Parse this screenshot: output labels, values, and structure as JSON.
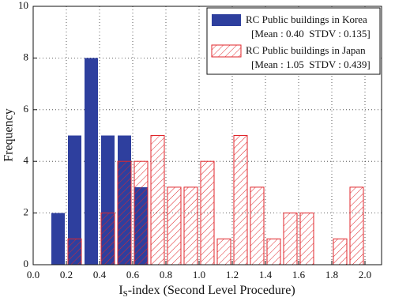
{
  "chart_data": {
    "type": "histogram",
    "xlabel_parts": [
      "I",
      "S",
      "-index (Second Level Procedure)"
    ],
    "ylabel": "Frequency",
    "bins": [
      0.1,
      0.2,
      0.3,
      0.4,
      0.5,
      0.6,
      0.7,
      0.8,
      0.9,
      1.0,
      1.1,
      1.2,
      1.3,
      1.4,
      1.5,
      1.6,
      1.7,
      1.8,
      1.9,
      2.0
    ],
    "series": [
      {
        "name": "RC Public buildings in Korea",
        "stats": "[Mean : 0.40  STDV : 0.135]",
        "color": "#2e3f9e",
        "fill": "solid",
        "values": [
          2,
          5,
          8,
          5,
          5,
          3,
          0,
          0,
          0,
          0,
          0,
          0,
          0,
          0,
          0,
          0,
          0,
          0,
          0
        ]
      },
      {
        "name": "RC Public buildings in Japan",
        "stats": "[Mean : 1.05  STDV : 0.439]",
        "color": "#e0262b",
        "fill": "hatch",
        "values": [
          0,
          1,
          0,
          2,
          4,
          4,
          5,
          3,
          3,
          4,
          1,
          5,
          3,
          1,
          2,
          2,
          0,
          1,
          3
        ]
      }
    ],
    "xlim": [
      0,
      2.1
    ],
    "ylim": [
      0,
      10
    ],
    "xticks": [
      {
        "value": 0,
        "label": "0.0"
      },
      0.2,
      0.4,
      0.6,
      0.8,
      {
        "value": 1,
        "label": "1.0"
      },
      1.2,
      1.4,
      1.6,
      1.8,
      {
        "value": 2,
        "label": "2.0"
      }
    ],
    "yticks": [
      0,
      2,
      4,
      6,
      8,
      10
    ],
    "grid": true,
    "legend": "top-right"
  }
}
